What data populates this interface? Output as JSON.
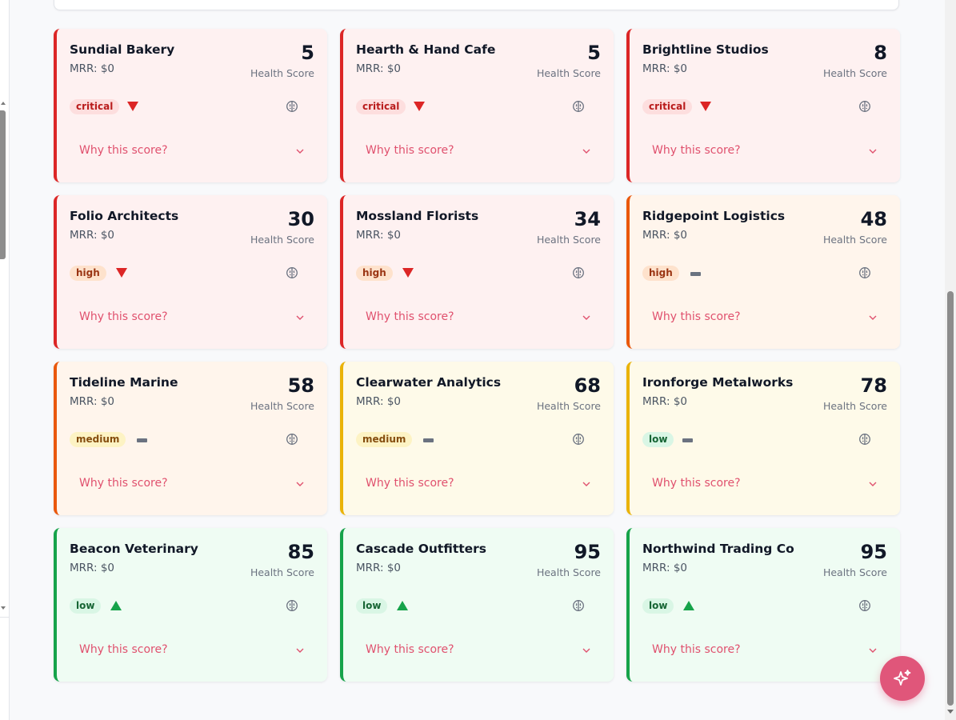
{
  "score_label": "Health Score",
  "why_label": "Why this score?",
  "colors": {
    "critical": "#dc2626",
    "high": "#ea580c",
    "medium": "#eab308",
    "low": "#16a34a",
    "accent": "#e0516e"
  },
  "cards": [
    {
      "name": "Sundial Bakery",
      "mrr": "MRR: $0",
      "score": "5",
      "risk": "critical",
      "trend": "down"
    },
    {
      "name": "Hearth & Hand Cafe",
      "mrr": "MRR: $0",
      "score": "5",
      "risk": "critical",
      "trend": "down"
    },
    {
      "name": "Brightline Studios",
      "mrr": "MRR: $0",
      "score": "8",
      "risk": "critical",
      "trend": "down"
    },
    {
      "name": "Folio Architects",
      "mrr": "MRR: $0",
      "score": "30",
      "risk": "high",
      "trend": "down"
    },
    {
      "name": "Mossland Florists",
      "mrr": "MRR: $0",
      "score": "34",
      "risk": "high",
      "trend": "down"
    },
    {
      "name": "Ridgepoint Logistics",
      "mrr": "MRR: $0",
      "score": "48",
      "risk": "high",
      "trend": "flat"
    },
    {
      "name": "Tideline Marine",
      "mrr": "MRR: $0",
      "score": "58",
      "risk": "medium",
      "trend": "flat"
    },
    {
      "name": "Clearwater Analytics",
      "mrr": "MRR: $0",
      "score": "68",
      "risk": "medium",
      "trend": "flat"
    },
    {
      "name": "Ironforge Metalworks",
      "mrr": "MRR: $0",
      "score": "78",
      "risk": "low",
      "trend": "flat"
    },
    {
      "name": "Beacon Veterinary",
      "mrr": "MRR: $0",
      "score": "85",
      "risk": "low",
      "trend": "up"
    },
    {
      "name": "Cascade Outfitters",
      "mrr": "MRR: $0",
      "score": "95",
      "risk": "low",
      "trend": "up"
    },
    {
      "name": "Northwind Trading Co",
      "mrr": "MRR: $0",
      "score": "95",
      "risk": "low",
      "trend": "up"
    }
  ],
  "fab": {
    "icon": "sparkles-icon"
  }
}
